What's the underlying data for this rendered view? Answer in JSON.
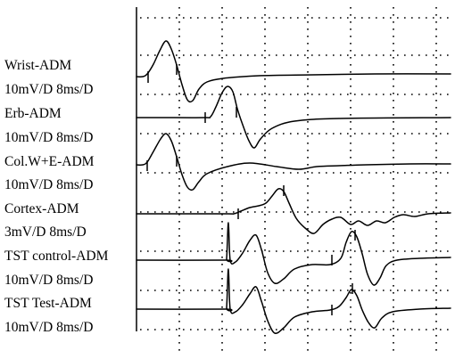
{
  "chart_data": {
    "type": "line",
    "title": "",
    "xlabel": "",
    "ylabel": "",
    "grid": true,
    "time_division_ms": 8,
    "divisions": 9,
    "traces": [
      {
        "label": "Wrist-ADM",
        "scale": "10mV/D 8ms/D"
      },
      {
        "label": "Erb-ADM",
        "scale": "10mV/D 8ms/D"
      },
      {
        "label": "Col.W+E-ADM",
        "scale": "10mV/D 8ms/D"
      },
      {
        "label": "Cortex-ADM",
        "scale": "3mV/D 8ms/D"
      },
      {
        "label": "TST control-ADM",
        "scale": "10mV/D 8ms/D"
      },
      {
        "label": "TST Test-ADM",
        "scale": "10mV/D 8ms/D"
      }
    ]
  }
}
